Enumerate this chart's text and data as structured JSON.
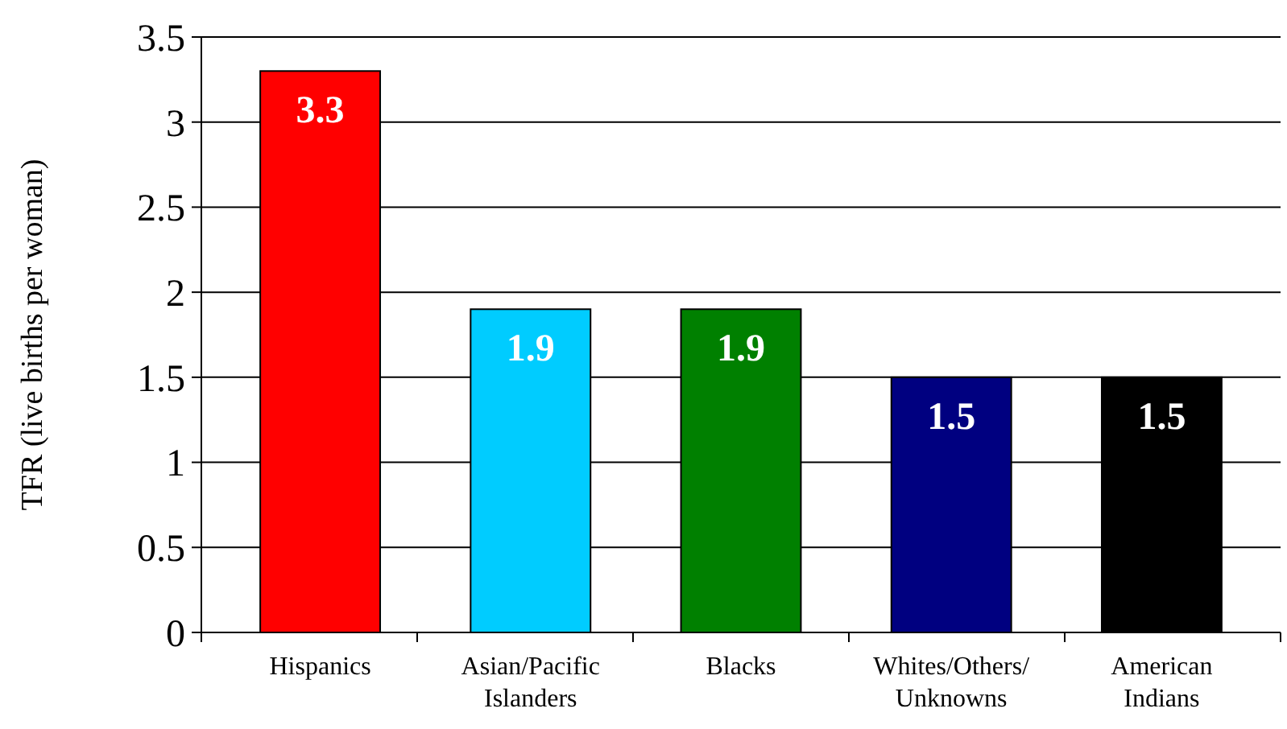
{
  "chart_data": {
    "type": "bar",
    "ylabel": "TFR (live births per woman)",
    "categories": [
      "Hispanics",
      "Asian/Pacific Islanders",
      "Blacks",
      "Whites/Others/Unknowns",
      "American Indians"
    ],
    "values": [
      3.3,
      1.9,
      1.9,
      1.5,
      1.5
    ],
    "colors": [
      "#ff0000",
      "#00ccff",
      "#008000",
      "#000080",
      "#000000"
    ],
    "ylim": [
      0,
      3.5
    ],
    "yticks": [
      0,
      0.5,
      1,
      1.5,
      2,
      2.5,
      3,
      3.5
    ],
    "grid": "y",
    "data_labels": true
  }
}
